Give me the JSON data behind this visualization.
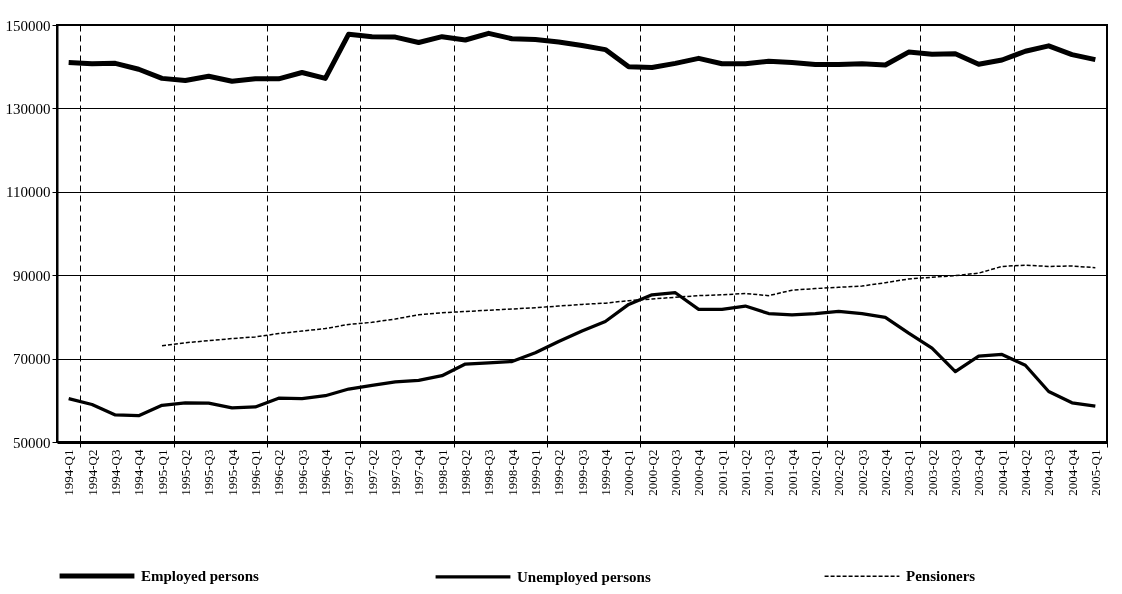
{
  "chart_data": {
    "type": "line",
    "categories": [
      "1994-Q1",
      "1994-Q2",
      "1994-Q3",
      "1994-Q4",
      "1995-Q1",
      "1995-Q2",
      "1995-Q3",
      "1995-Q4",
      "1996-Q1",
      "1996-Q2",
      "1996-Q3",
      "1996-Q4",
      "1997-Q1",
      "1997-Q2",
      "1997-Q3",
      "1997-Q4",
      "1998-Q1",
      "1998-Q2",
      "1998-Q3",
      "1998-Q4",
      "1999-Q1",
      "1999-Q2",
      "1999-Q3",
      "1999-Q4",
      "2000-Q1",
      "2000-Q2",
      "2000-Q3",
      "2000-Q4",
      "2001-Q1",
      "2001-Q2",
      "2001-Q3",
      "2001-Q4",
      "2002-Q1",
      "2002-Q2",
      "2002-Q3",
      "2002-Q4",
      "2003-Q1",
      "2003-Q2",
      "2003-Q3",
      "2003-Q4",
      "2004-Q1",
      "2004-Q2",
      "2004-Q3",
      "2004-Q4",
      "2005-Q1"
    ],
    "series": [
      {
        "name": "Employed persons",
        "color": "#000000",
        "line_style": "solid",
        "values": [
          141000,
          140700,
          140800,
          139400,
          137200,
          136700,
          137700,
          136500,
          137100,
          137100,
          138600,
          137200,
          147800,
          147200,
          147100,
          145800,
          147200,
          146400,
          148000,
          146700,
          146500,
          145900,
          145100,
          144100,
          140000,
          139800,
          140800,
          142000,
          140700,
          140700,
          141300,
          141000,
          140500,
          140500,
          140700,
          140400,
          143500,
          143000,
          143100,
          140600,
          141600,
          143700,
          145000,
          142900,
          141700
        ]
      },
      {
        "name": "Unemployed persons",
        "color": "#000000",
        "line_style": "solid",
        "values": [
          60400,
          59000,
          56500,
          56300,
          58800,
          59400,
          59300,
          58200,
          58400,
          60500,
          60400,
          61100,
          62700,
          63600,
          64400,
          64800,
          65900,
          68700,
          69000,
          69300,
          71400,
          74100,
          76600,
          78900,
          83000,
          85300,
          85800,
          81800,
          81800,
          82600,
          80800,
          80500,
          80800,
          81300,
          80800,
          79900,
          76100,
          72500,
          66900,
          70600,
          71000,
          68400,
          62100,
          59400,
          58600
        ]
      },
      {
        "name": "Pensioners",
        "color": "#000000",
        "line_style": "dashed",
        "values": [
          null,
          null,
          null,
          null,
          73100,
          73800,
          74300,
          74800,
          75200,
          76000,
          76600,
          77200,
          78200,
          78700,
          79500,
          80500,
          81000,
          81300,
          81600,
          81900,
          82200,
          82600,
          83000,
          83300,
          83900,
          84300,
          84700,
          85100,
          85300,
          85600,
          85100,
          86400,
          86800,
          87100,
          87400,
          88200,
          89100,
          89500,
          89900,
          90500,
          92100,
          92400,
          92100,
          92200,
          91800
        ]
      }
    ],
    "ylim": [
      50000,
      150000
    ],
    "yticks": [
      50000,
      70000,
      90000,
      110000,
      130000,
      150000
    ],
    "grid": true,
    "legend": "bottom"
  }
}
